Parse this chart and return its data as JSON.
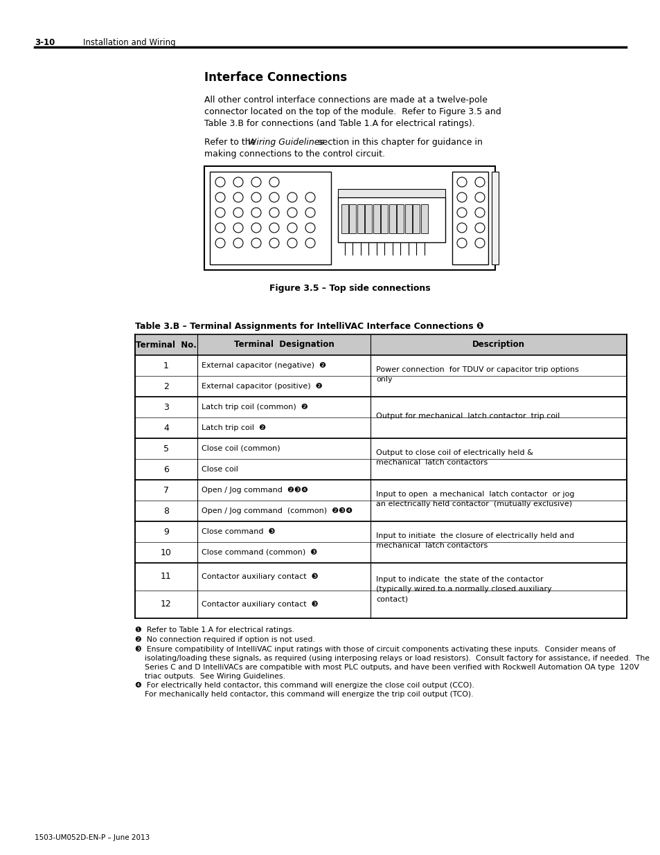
{
  "page_header_num": "3-10",
  "page_header_text": "Installation and Wiring",
  "section_title": "Interface Connections",
  "para1_lines": [
    "All other control interface connections are made at a twelve-pole",
    "connector located on the top of the module.  Refer to Figure 3.5 and",
    "Table 3.B for connections (and Table 1.A for electrical ratings)."
  ],
  "para2_line1_prefix": "Refer to the ",
  "para2_line1_italic": "Wiring Guidelines",
  "para2_line1_suffix": " section in this chapter for guidance in",
  "para2_line2": "making connections to the control circuit.",
  "fig_caption": "Figure 3.5 – Top side connections",
  "table_title": "Table 3.B – Terminal Assignments for IntelliVAC Interface Connections ❶",
  "col_headers": [
    "Terminal  No.",
    "Terminal  Designation",
    "Description"
  ],
  "rows": [
    {
      "no": "1",
      "desig": "External capacitor (negative)  ❷",
      "desc": "Power connection  for TDUV or capacitor trip options\nonly"
    },
    {
      "no": "2",
      "desig": "External capacitor (positive)  ❷",
      "desc": ""
    },
    {
      "no": "3",
      "desig": "Latch trip coil (common)  ❷",
      "desc": "Output for mechanical  latch contactor  trip coil"
    },
    {
      "no": "4",
      "desig": "Latch trip coil  ❷",
      "desc": ""
    },
    {
      "no": "5",
      "desig": "Close coil (common)",
      "desc": "Output to close coil of electrically held &\nmechanical  latch contactors"
    },
    {
      "no": "6",
      "desig": "Close coil",
      "desc": ""
    },
    {
      "no": "7",
      "desig": "Open / Jog command  ❷❸❹",
      "desc": "Input to open  a mechanical  latch contactor  or jog\nan electrically held contactor  (mutually exclusive)"
    },
    {
      "no": "8",
      "desig": "Open / Jog command  (common)  ❷❸❹",
      "desc": ""
    },
    {
      "no": "9",
      "desig": "Close command  ❸",
      "desc": "Input to initiate  the closure of electrically held and\nmechanical  latch contactors"
    },
    {
      "no": "10",
      "desig": "Close command (common)  ❸",
      "desc": ""
    },
    {
      "no": "11",
      "desig": "Contactor auxiliary contact  ❸",
      "desc": "Input to indicate  the state of the contactor\n(typically wired to a normally closed auxiliary\ncontact)"
    },
    {
      "no": "12",
      "desig": "Contactor auxiliary contact  ❸",
      "desc": ""
    }
  ],
  "footnote1": "❶  Refer to Table 1.A for electrical ratings.",
  "footnote2": "❷  No connection required if option is not used.",
  "footnote3_lines": [
    "❸  Ensure compatibility of IntelliVAC input ratings with those of circuit components activating these inputs.  Consider means of",
    "    isolating/loading these signals, as required (using interposing relays or load resistors).  Consult factory for assistance, if needed.  The",
    "    Series C and D IntelliVACs are compatible with most PLC outputs, and have been verified with Rockwell Automation OA type  120V",
    "    triac outputs.  See Wiring Guidelines."
  ],
  "footnote4_lines": [
    "❹  For electrically held contactor, this command will energize the close coil output (CCO).",
    "    For mechanically held contactor, this command will energize the trip coil output (TCO)."
  ],
  "page_footer": "1503-UM052D-EN-P – June 2013"
}
